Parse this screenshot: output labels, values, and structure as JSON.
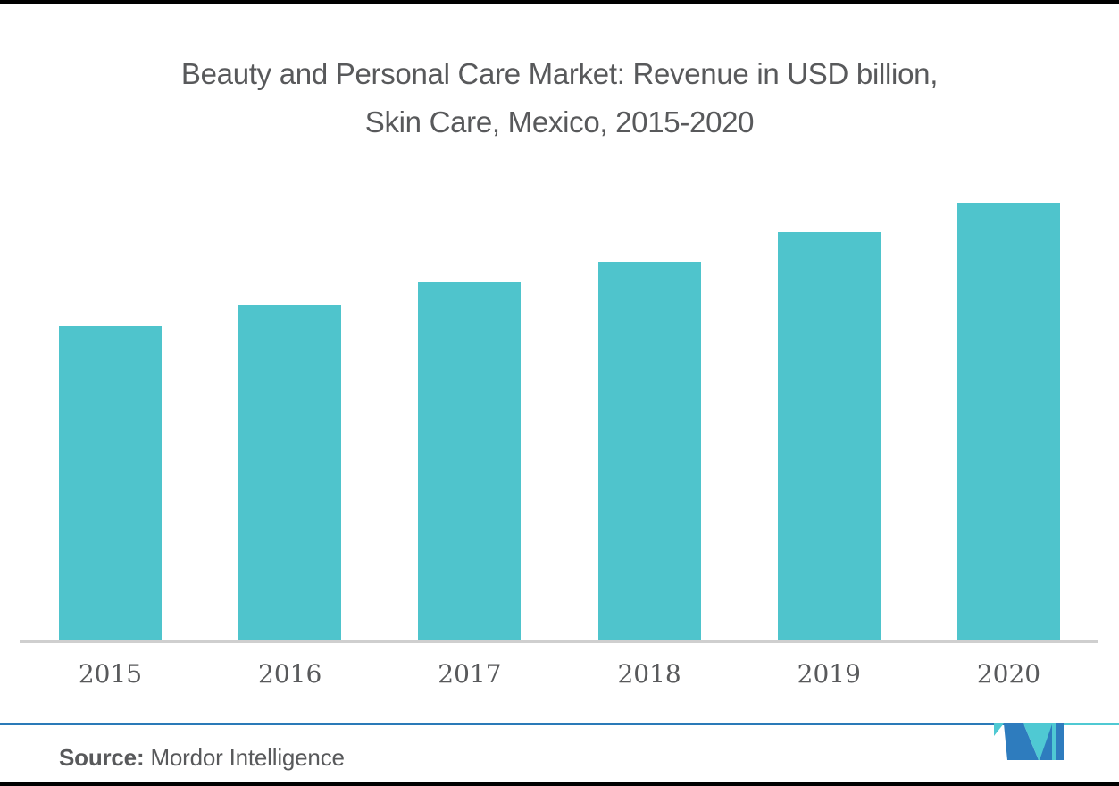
{
  "title": {
    "line1": "Beauty and Personal Care Market: Revenue in USD billion,",
    "line2": "Skin Care, Mexico, 2015-2020"
  },
  "chart_data": {
    "type": "bar",
    "categories": [
      "2015",
      "2016",
      "2017",
      "2018",
      "2019",
      "2020"
    ],
    "values": [
      1.5,
      1.6,
      1.71,
      1.81,
      1.95,
      2.09
    ],
    "units": "USD billion",
    "note": "No y-axis or value labels shown; values estimated from relative bar heights",
    "title": "Beauty and Personal Care Market: Revenue in USD billion, Skin Care, Mexico, 2015-2020",
    "xlabel": "",
    "ylabel": "Revenue in USD billion",
    "ylim": [
      0,
      2.2
    ],
    "grid": false,
    "legend": false,
    "bar_color": "#4FC4CC"
  },
  "source": {
    "label": "Source:",
    "name": "Mordor Intelligence"
  },
  "logo": {
    "name": "mordor-intelligence-logo",
    "blue": "#2E7CBE",
    "teal": "#4FC9D3"
  },
  "colors": {
    "bar": "#4FC4CC",
    "text_gray": "#58595B",
    "axis_line": "#CFCFCF",
    "divider_blue": "#2A7AB8",
    "divider_teal": "#4FC9D3",
    "frame": "#000000",
    "background": "#FFFFFF"
  }
}
